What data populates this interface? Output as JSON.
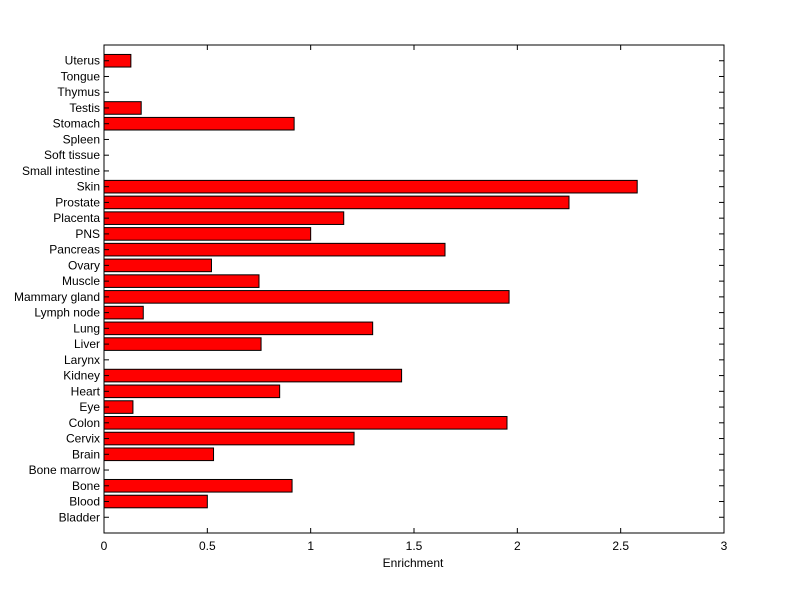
{
  "chart_data": {
    "type": "bar",
    "orientation": "horizontal",
    "categories": [
      "Bladder",
      "Blood",
      "Bone",
      "Bone marrow",
      "Brain",
      "Cervix",
      "Colon",
      "Eye",
      "Heart",
      "Kidney",
      "Larynx",
      "Liver",
      "Lung",
      "Lymph node",
      "Mammary gland",
      "Muscle",
      "Ovary",
      "Pancreas",
      "PNS",
      "Placenta",
      "Prostate",
      "Skin",
      "Small intestine",
      "Soft tissue",
      "Spleen",
      "Stomach",
      "Testis",
      "Thymus",
      "Tongue",
      "Uterus"
    ],
    "values": [
      0,
      0.5,
      0.91,
      0,
      0.53,
      1.21,
      1.95,
      0.14,
      0.85,
      1.44,
      0,
      0.76,
      1.3,
      0.19,
      1.96,
      0.75,
      0.52,
      1.65,
      1.0,
      1.16,
      2.25,
      2.58,
      0,
      0,
      0,
      0.92,
      0.18,
      0,
      0,
      0.13
    ],
    "xlabel": "Enrichment",
    "ylabel": "",
    "title": "",
    "xlim": [
      0,
      3
    ],
    "xticks": [
      "0",
      "0.5",
      "1",
      "1.5",
      "2",
      "2.5",
      "3"
    ],
    "grid": false,
    "bar_color": "#ff0000",
    "bar_edge_color": "#000000"
  }
}
